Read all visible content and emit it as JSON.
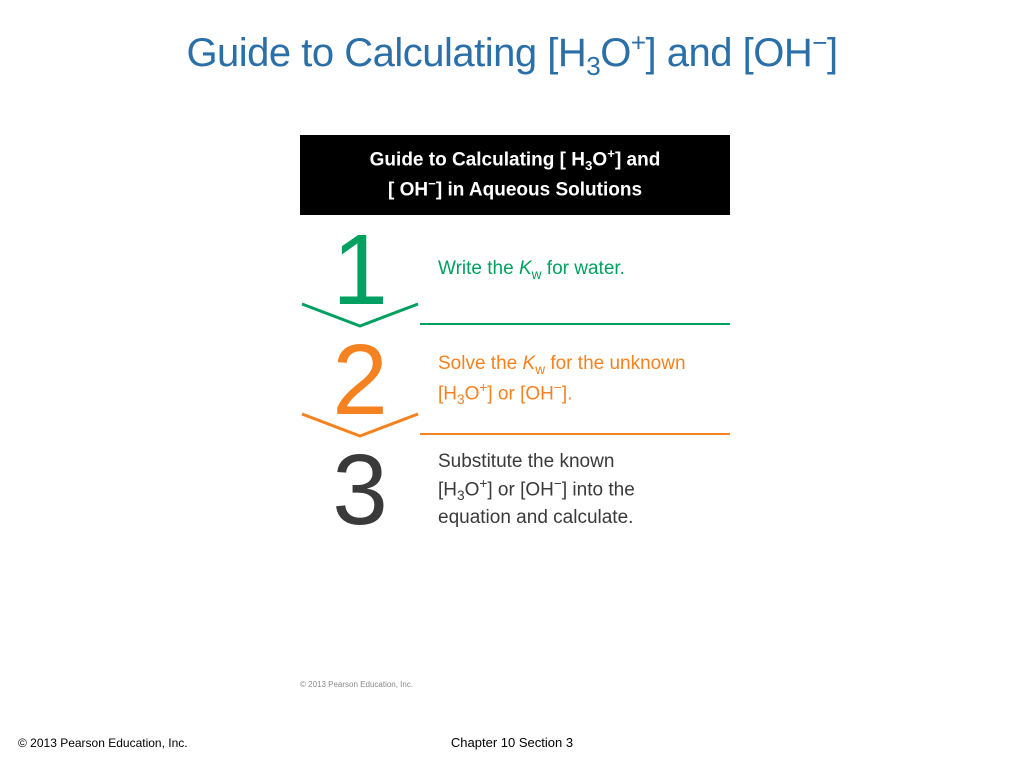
{
  "title_color": "#2a6fa8",
  "title_parts": {
    "prefix": "Guide to Calculating [H",
    "sub1": "3",
    "mid1": "O",
    "sup1": "+",
    "mid2": "] and [OH",
    "sup2": "−",
    "suffix": "]"
  },
  "box_header": {
    "l1_a": "Guide to Calculating [ H",
    "l1_sub": "3",
    "l1_b": "O",
    "l1_sup": "+",
    "l1_c": "] and",
    "l2_a": "[ OH",
    "l2_sup": "−",
    "l2_b": "] in Aqueous Solutions"
  },
  "steps": [
    {
      "num": "1",
      "color": "#00a160",
      "text_pre": "Write the ",
      "kw": "K",
      "kw_sub": "w",
      "text_post": " for water."
    },
    {
      "num": "2",
      "color": "#f58220",
      "text_pre": "Solve the ",
      "kw": "K",
      "kw_sub": "w",
      "text_mid": " for the unknown [H",
      "h_sub": "3",
      "text_mid2": "O",
      "h_sup": "+",
      "text_mid3": "] or [OH",
      "oh_sup": "−",
      "text_post": "]."
    },
    {
      "num": "3",
      "color": "#3a3a3a",
      "line1_a": "Substitute the known",
      "line2_a": "[H",
      "line2_sub": "3",
      "line2_b": "O",
      "line2_sup": "+",
      "line2_c": "] or [OH",
      "line2_sup2": "−",
      "line2_d": "] into the",
      "line3": "equation and calculate."
    }
  ],
  "micro": "© 2013 Pearson Education, Inc.",
  "footer_left": "© 2013 Pearson Education, Inc.",
  "footer_center": "Chapter 10 Section 3"
}
